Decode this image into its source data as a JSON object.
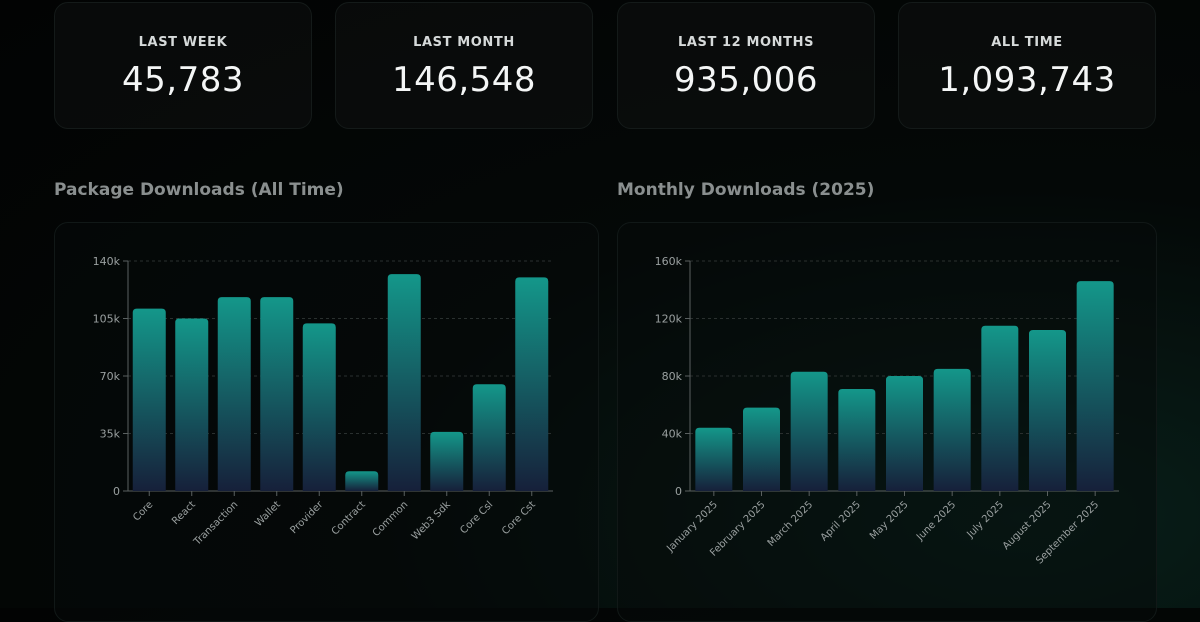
{
  "stats": [
    {
      "label": "LAST WEEK",
      "value": "45,783"
    },
    {
      "label": "LAST MONTH",
      "value": "146,548"
    },
    {
      "label": "LAST 12 MONTHS",
      "value": "935,006"
    },
    {
      "label": "ALL TIME",
      "value": "1,093,743"
    }
  ],
  "colors": {
    "bar_top": "#14978a",
    "bar_bottom": "#16203a",
    "grid": "#2a302f",
    "tick_text": "#9aa0a0"
  },
  "chart_data": [
    {
      "type": "bar",
      "title": "Package Downloads (All Time)",
      "categories": [
        "Core",
        "React",
        "Transaction",
        "Wallet",
        "Provider",
        "Contract",
        "Common",
        "Web3 Sdk",
        "Core Csl",
        "Core Cst"
      ],
      "values": [
        111000,
        105000,
        118000,
        118000,
        102000,
        12000,
        132000,
        36000,
        65000,
        130000
      ],
      "y_ticks": [
        0,
        35000,
        70000,
        105000,
        140000
      ],
      "y_tick_labels": [
        "0",
        "35k",
        "70k",
        "105k",
        "140k"
      ],
      "ylim": [
        0,
        140000
      ],
      "grid": true
    },
    {
      "type": "bar",
      "title": "Monthly Downloads (2025)",
      "categories": [
        "January 2025",
        "February 2025",
        "March 2025",
        "April 2025",
        "May 2025",
        "June 2025",
        "July 2025",
        "August 2025",
        "September 2025"
      ],
      "values": [
        44000,
        58000,
        83000,
        71000,
        80000,
        85000,
        115000,
        112000,
        146000
      ],
      "y_ticks": [
        0,
        40000,
        80000,
        120000,
        160000
      ],
      "y_tick_labels": [
        "0",
        "40k",
        "80k",
        "120k",
        "160k"
      ],
      "ylim": [
        0,
        160000
      ],
      "grid": true
    }
  ]
}
